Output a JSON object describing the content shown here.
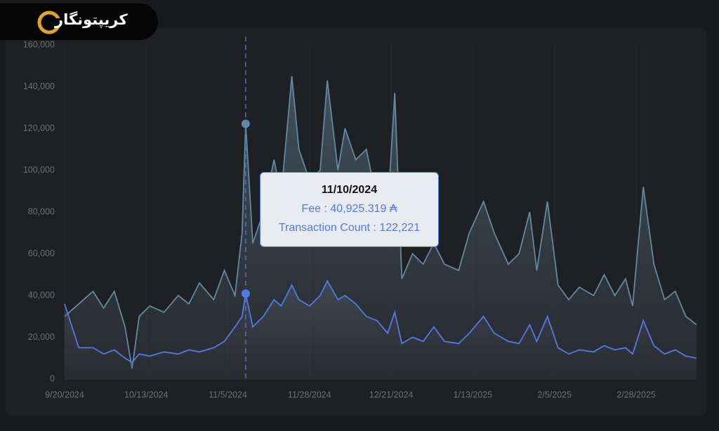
{
  "brand": "کریپتونگار",
  "chart_data": {
    "type": "area",
    "x": [
      "2024-09-20",
      "2024-09-24",
      "2024-09-28",
      "2024-10-01",
      "2024-10-04",
      "2024-10-07",
      "2024-10-09",
      "2024-10-11",
      "2024-10-14",
      "2024-10-18",
      "2024-10-22",
      "2024-10-25",
      "2024-10-28",
      "2024-11-01",
      "2024-11-04",
      "2024-11-07",
      "2024-11-09",
      "2024-11-10",
      "2024-11-12",
      "2024-11-15",
      "2024-11-18",
      "2024-11-20",
      "2024-11-23",
      "2024-11-25",
      "2024-11-28",
      "2024-12-01",
      "2024-12-03",
      "2024-12-06",
      "2024-12-08",
      "2024-12-11",
      "2024-12-14",
      "2024-12-17",
      "2024-12-20",
      "2024-12-22",
      "2024-12-24",
      "2024-12-27",
      "2024-12-30",
      "2025-01-02",
      "2025-01-05",
      "2025-01-09",
      "2025-01-12",
      "2025-01-16",
      "2025-01-19",
      "2025-01-23",
      "2025-01-26",
      "2025-01-29",
      "2025-01-31",
      "2025-02-03",
      "2025-02-06",
      "2025-02-09",
      "2025-02-12",
      "2025-02-16",
      "2025-02-19",
      "2025-02-22",
      "2025-02-25",
      "2025-02-27",
      "2025-03-02",
      "2025-03-05",
      "2025-03-08",
      "2025-03-11",
      "2025-03-14",
      "2025-03-17"
    ],
    "series": [
      {
        "name": "Transaction Count",
        "color": "#5f8aa3",
        "tooltip_value": "122,221",
        "values": [
          30000,
          36000,
          42000,
          34000,
          42000,
          25000,
          5000,
          30000,
          35000,
          32000,
          40000,
          36000,
          46000,
          38000,
          52000,
          40000,
          70000,
          122221,
          65000,
          80000,
          105000,
          88000,
          145000,
          110000,
          95000,
          100000,
          143000,
          100000,
          120000,
          105000,
          110000,
          85000,
          80000,
          137000,
          48000,
          60000,
          55000,
          65000,
          55000,
          52000,
          70000,
          85000,
          70000,
          55000,
          60000,
          80000,
          52000,
          85000,
          45000,
          38000,
          44000,
          40000,
          50000,
          40000,
          48000,
          35000,
          92000,
          55000,
          38000,
          42000,
          30000,
          26000
        ]
      },
      {
        "name": "Fee",
        "color": "#4f7be8",
        "tooltip_value": "40,925.319 ₳",
        "values": [
          36000,
          15000,
          15000,
          12000,
          14000,
          10000,
          8000,
          12000,
          11000,
          13000,
          12000,
          14000,
          13000,
          15000,
          18000,
          25000,
          30000,
          40925.319,
          25000,
          30000,
          38000,
          35000,
          45000,
          38000,
          35000,
          40000,
          47000,
          38000,
          40000,
          36000,
          30000,
          28000,
          22000,
          32000,
          17000,
          20000,
          18000,
          25000,
          18000,
          17000,
          22000,
          30000,
          22000,
          18000,
          17000,
          26000,
          18000,
          30000,
          15000,
          12000,
          14000,
          13000,
          16000,
          14000,
          15000,
          12000,
          28000,
          16000,
          12000,
          14000,
          11000,
          10000
        ]
      }
    ],
    "xlim": [
      "2024-09-20",
      "2025-03-17"
    ],
    "xticks": [
      {
        "value": "2024-09-20",
        "label": "9/20/2024"
      },
      {
        "value": "2024-10-13",
        "label": "10/13/2024"
      },
      {
        "value": "2024-11-05",
        "label": "11/5/2024"
      },
      {
        "value": "2024-11-28",
        "label": "11/28/2024"
      },
      {
        "value": "2024-12-21",
        "label": "12/21/2024"
      },
      {
        "value": "2025-01-13",
        "label": "1/13/2025"
      },
      {
        "value": "2025-02-05",
        "label": "2/5/2025"
      },
      {
        "value": "2025-02-28",
        "label": "2/28/2025"
      }
    ],
    "ylim": [
      0,
      160000
    ],
    "yticks": [
      0,
      {
        "value": 20000,
        "label": "20,000"
      },
      {
        "value": 40000,
        "label": "40,000"
      },
      {
        "value": 60000,
        "label": "60,000"
      },
      {
        "value": 80000,
        "label": "80,000"
      },
      {
        "value": 100000,
        "label": "100,000"
      },
      {
        "value": 120000,
        "label": "120,000"
      },
      {
        "value": 140000,
        "label": "140,000"
      },
      {
        "value": 160000,
        "label": "160,000"
      }
    ],
    "tooltip": {
      "x": {
        "value": "2024-11-10",
        "label": "11/10/2024"
      },
      "separator": ":"
    }
  }
}
